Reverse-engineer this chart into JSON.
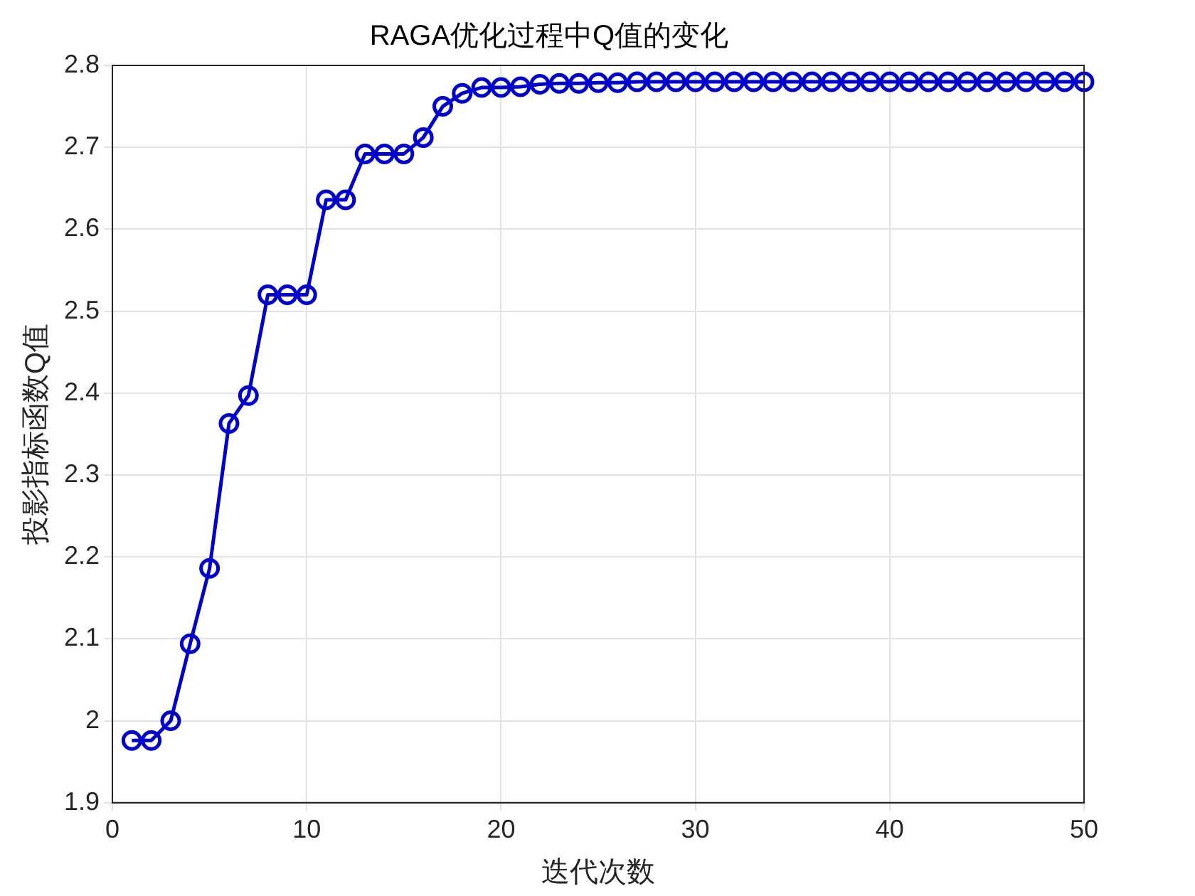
{
  "chart_data": {
    "type": "line",
    "title": "RAGA优化过程中Q值的变化",
    "xlabel": "迭代次数",
    "ylabel": "投影指标函数Q值",
    "x": [
      1,
      2,
      3,
      4,
      5,
      6,
      7,
      8,
      9,
      10,
      11,
      12,
      13,
      14,
      15,
      16,
      17,
      18,
      19,
      20,
      21,
      22,
      23,
      24,
      25,
      26,
      27,
      28,
      29,
      30,
      31,
      32,
      33,
      34,
      35,
      36,
      37,
      38,
      39,
      40,
      41,
      42,
      43,
      44,
      45,
      46,
      47,
      48,
      49,
      50
    ],
    "series": [
      {
        "color": "#0000cc",
        "values": [
          1.976,
          1.976,
          2.0,
          2.094,
          2.186,
          2.363,
          2.397,
          2.52,
          2.52,
          2.52,
          2.636,
          2.636,
          2.692,
          2.692,
          2.692,
          2.712,
          2.75,
          2.766,
          2.773,
          2.773,
          2.774,
          2.777,
          2.778,
          2.778,
          2.779,
          2.779,
          2.78,
          2.78,
          2.78,
          2.78,
          2.78,
          2.78,
          2.78,
          2.78,
          2.78,
          2.78,
          2.78,
          2.78,
          2.78,
          2.78,
          2.78,
          2.78,
          2.78,
          2.78,
          2.78,
          2.78,
          2.78,
          2.78,
          2.78,
          2.78
        ]
      }
    ],
    "xlim": [
      0,
      50
    ],
    "xticks": [
      0,
      10,
      20,
      30,
      40,
      50
    ],
    "ylim": [
      1.9,
      2.8
    ],
    "yticks": [
      1.9,
      2,
      2.1,
      2.2,
      2.3,
      2.4,
      2.5,
      2.6,
      2.7,
      2.8
    ],
    "grid": true,
    "marker": "circle",
    "line_style": "solid",
    "legend": false
  }
}
